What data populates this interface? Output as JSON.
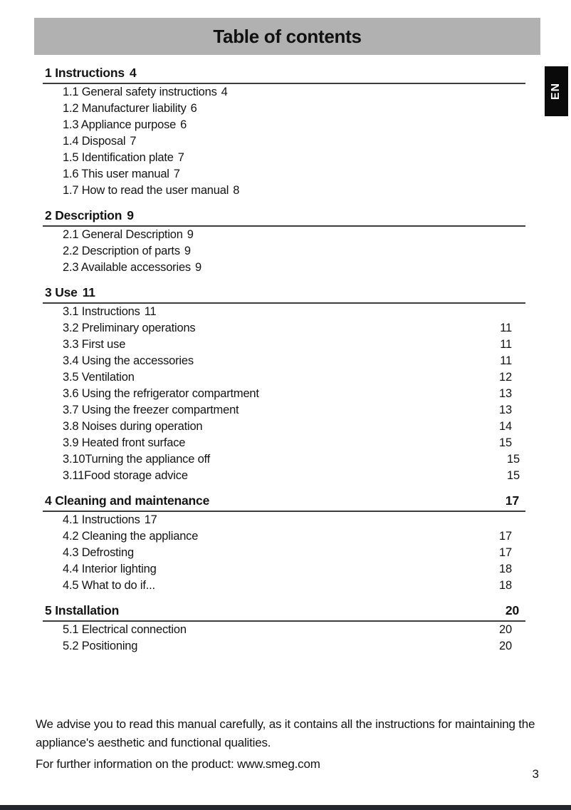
{
  "header": {
    "title": "Table of contents"
  },
  "language_tab": {
    "label": "EN"
  },
  "sections": [
    {
      "heading": {
        "label": "1 Instructions",
        "page": "4"
      },
      "items": [
        {
          "label": "1.1 General safety instructions",
          "page": "4"
        },
        {
          "label": "1.2 Manufacturer liability",
          "page": "6"
        },
        {
          "label": "1.3 Appliance purpose",
          "page": "6"
        },
        {
          "label": "1.4 Disposal",
          "page": "7"
        },
        {
          "label": "1.5 Identification plate",
          "page": "7"
        },
        {
          "label": "1.6 This user manual",
          "page": "7"
        },
        {
          "label": "1.7 How to read the user manual",
          "page": "8"
        }
      ]
    },
    {
      "heading": {
        "label": "2 Description",
        "page": "9"
      },
      "items": [
        {
          "label": "2.1 General Description",
          "page": "9"
        },
        {
          "label": "2.2 Description of parts",
          "page": "9"
        },
        {
          "label": "2.3 Available accessories",
          "page": "9"
        }
      ]
    },
    {
      "heading": {
        "label": "3 Use",
        "page": "11"
      },
      "items": [
        {
          "label": "3.1 Instructions",
          "page": "11"
        },
        {
          "label": "3.2 Preliminary operations",
          "page": "11"
        },
        {
          "label": "3.3 First use",
          "page": "11"
        },
        {
          "label": "3.4 Using the accessories",
          "page": "11"
        },
        {
          "label": "3.5 Ventilation",
          "page": "12"
        },
        {
          "label": "3.6 Using the refrigerator compartment",
          "page": "13"
        },
        {
          "label": "3.7 Using the freezer compartment",
          "page": "13"
        },
        {
          "label": "3.8 Noises during operation",
          "page": "14"
        },
        {
          "label": "3.9 Heated front surface",
          "page": "15"
        },
        {
          "label": "3.10Turning the appliance off",
          "page": "15"
        },
        {
          "label": "3.11Food storage advice",
          "page": "15"
        }
      ]
    },
    {
      "heading": {
        "label": "4 Cleaning and maintenance",
        "page": "17"
      },
      "items": [
        {
          "label": "4.1 Instructions",
          "page": "17"
        },
        {
          "label": "4.2 Cleaning the appliance",
          "page": "17"
        },
        {
          "label": "4.3 Defrosting",
          "page": "17"
        },
        {
          "label": "4.4 Interior lighting",
          "page": "18"
        },
        {
          "label": "4.5 What to do if...",
          "page": "18"
        }
      ]
    },
    {
      "heading": {
        "label": "5 Installation",
        "page": "20"
      },
      "items": [
        {
          "label": "5.1 Electrical connection",
          "page": "20"
        },
        {
          "label": "5.2 Positioning",
          "page": "20"
        }
      ]
    }
  ],
  "footer": {
    "note_line1": "We advise you to read this manual carefully, as it contains all the instructions for maintaining the appliance's aesthetic and functional qualities.",
    "note_line2": "For further information on the product: www.smeg.com",
    "page_number": "3"
  },
  "colors": {
    "header_bar": "#b1b1b1",
    "language_tab_bg": "#0a0a0a",
    "bottom_bar": "#23272b",
    "text": "#141414"
  }
}
